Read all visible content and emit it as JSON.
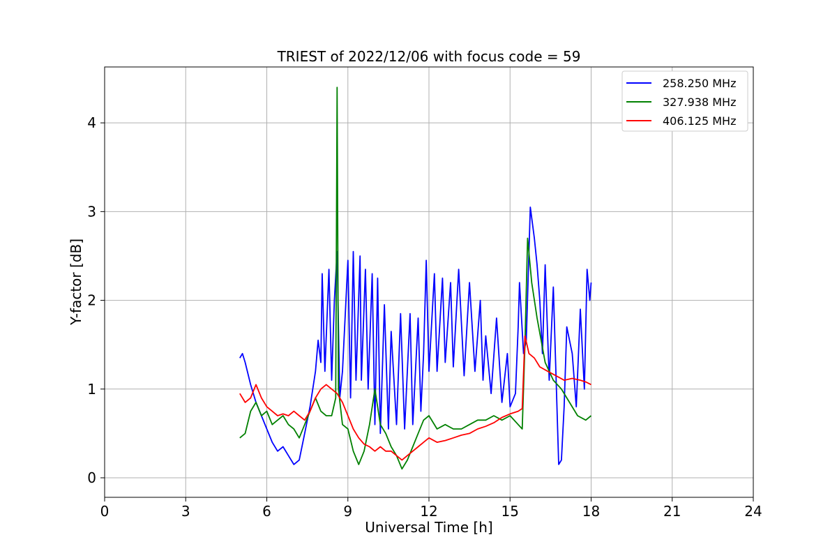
{
  "chart_data": {
    "type": "line",
    "title": "TRIEST of 2022/12/06 with focus code = 59",
    "xlabel": "Universal Time [h]",
    "ylabel": "Y-factor [dB]",
    "xlim": [
      0,
      24
    ],
    "ylim": [
      -0.22,
      4.63
    ],
    "xticks": [
      0,
      3,
      6,
      9,
      12,
      15,
      18,
      21,
      24
    ],
    "yticks": [
      0,
      1,
      2,
      3,
      4
    ],
    "grid": true,
    "legend_position": "top-right",
    "series": [
      {
        "name": "258.250 MHz",
        "color": "#0000ff",
        "points": [
          [
            5.0,
            1.35
          ],
          [
            5.1,
            1.4
          ],
          [
            5.2,
            1.3
          ],
          [
            5.4,
            1.05
          ],
          [
            5.6,
            0.85
          ],
          [
            5.8,
            0.7
          ],
          [
            6.0,
            0.55
          ],
          [
            6.2,
            0.4
          ],
          [
            6.4,
            0.3
          ],
          [
            6.6,
            0.35
          ],
          [
            6.8,
            0.25
          ],
          [
            7.0,
            0.15
          ],
          [
            7.2,
            0.2
          ],
          [
            7.4,
            0.5
          ],
          [
            7.6,
            0.8
          ],
          [
            7.8,
            1.2
          ],
          [
            7.9,
            1.55
          ],
          [
            8.0,
            1.3
          ],
          [
            8.05,
            2.3
          ],
          [
            8.15,
            1.2
          ],
          [
            8.3,
            2.35
          ],
          [
            8.4,
            1.1
          ],
          [
            8.5,
            2.0
          ],
          [
            8.6,
            2.55
          ],
          [
            8.7,
            0.9
          ],
          [
            8.8,
            1.2
          ],
          [
            9.0,
            2.45
          ],
          [
            9.1,
            0.9
          ],
          [
            9.2,
            2.55
          ],
          [
            9.3,
            1.1
          ],
          [
            9.45,
            2.5
          ],
          [
            9.5,
            1.1
          ],
          [
            9.65,
            2.35
          ],
          [
            9.75,
            1.0
          ],
          [
            9.9,
            2.3
          ],
          [
            10.0,
            0.6
          ],
          [
            10.1,
            2.25
          ],
          [
            10.2,
            0.5
          ],
          [
            10.35,
            1.95
          ],
          [
            10.5,
            0.55
          ],
          [
            10.6,
            1.65
          ],
          [
            10.8,
            0.6
          ],
          [
            10.95,
            1.85
          ],
          [
            11.1,
            0.55
          ],
          [
            11.3,
            1.85
          ],
          [
            11.4,
            0.6
          ],
          [
            11.6,
            1.8
          ],
          [
            11.7,
            0.75
          ],
          [
            11.8,
            1.4
          ],
          [
            11.9,
            2.45
          ],
          [
            12.0,
            1.2
          ],
          [
            12.2,
            2.3
          ],
          [
            12.3,
            1.2
          ],
          [
            12.5,
            2.25
          ],
          [
            12.6,
            1.3
          ],
          [
            12.8,
            2.2
          ],
          [
            12.9,
            1.25
          ],
          [
            13.1,
            2.35
          ],
          [
            13.3,
            1.15
          ],
          [
            13.5,
            2.2
          ],
          [
            13.7,
            1.2
          ],
          [
            13.9,
            2.0
          ],
          [
            14.0,
            1.1
          ],
          [
            14.1,
            1.6
          ],
          [
            14.3,
            0.95
          ],
          [
            14.5,
            1.8
          ],
          [
            14.7,
            0.85
          ],
          [
            14.9,
            1.4
          ],
          [
            15.0,
            0.8
          ],
          [
            15.2,
            0.95
          ],
          [
            15.3,
            1.7
          ],
          [
            15.35,
            2.2
          ],
          [
            15.5,
            1.4
          ],
          [
            15.6,
            1.55
          ],
          [
            15.75,
            3.05
          ],
          [
            15.9,
            2.7
          ],
          [
            16.0,
            2.4
          ],
          [
            16.1,
            2.0
          ],
          [
            16.2,
            1.4
          ],
          [
            16.3,
            2.4
          ],
          [
            16.45,
            1.1
          ],
          [
            16.6,
            2.15
          ],
          [
            16.8,
            0.15
          ],
          [
            16.9,
            0.2
          ],
          [
            17.0,
            0.8
          ],
          [
            17.1,
            1.7
          ],
          [
            17.3,
            1.4
          ],
          [
            17.45,
            0.8
          ],
          [
            17.6,
            1.9
          ],
          [
            17.75,
            1.0
          ],
          [
            17.85,
            2.35
          ],
          [
            17.95,
            2.0
          ],
          [
            18.0,
            2.2
          ]
        ]
      },
      {
        "name": "327.938 MHz",
        "color": "#008000",
        "points": [
          [
            5.0,
            0.45
          ],
          [
            5.2,
            0.5
          ],
          [
            5.4,
            0.75
          ],
          [
            5.6,
            0.85
          ],
          [
            5.8,
            0.7
          ],
          [
            6.0,
            0.75
          ],
          [
            6.2,
            0.6
          ],
          [
            6.4,
            0.65
          ],
          [
            6.6,
            0.7
          ],
          [
            6.8,
            0.6
          ],
          [
            7.0,
            0.55
          ],
          [
            7.2,
            0.45
          ],
          [
            7.4,
            0.6
          ],
          [
            7.6,
            0.75
          ],
          [
            7.8,
            0.9
          ],
          [
            8.0,
            0.75
          ],
          [
            8.2,
            0.7
          ],
          [
            8.4,
            0.7
          ],
          [
            8.55,
            0.9
          ],
          [
            8.6,
            4.4
          ],
          [
            8.65,
            1.0
          ],
          [
            8.8,
            0.6
          ],
          [
            9.0,
            0.55
          ],
          [
            9.2,
            0.3
          ],
          [
            9.4,
            0.15
          ],
          [
            9.6,
            0.3
          ],
          [
            9.8,
            0.6
          ],
          [
            10.0,
            1.0
          ],
          [
            10.2,
            0.6
          ],
          [
            10.4,
            0.5
          ],
          [
            10.6,
            0.35
          ],
          [
            10.8,
            0.25
          ],
          [
            11.0,
            0.1
          ],
          [
            11.2,
            0.2
          ],
          [
            11.4,
            0.35
          ],
          [
            11.6,
            0.5
          ],
          [
            11.8,
            0.65
          ],
          [
            12.0,
            0.7
          ],
          [
            12.3,
            0.55
          ],
          [
            12.6,
            0.6
          ],
          [
            12.9,
            0.55
          ],
          [
            13.2,
            0.55
          ],
          [
            13.5,
            0.6
          ],
          [
            13.8,
            0.65
          ],
          [
            14.1,
            0.65
          ],
          [
            14.4,
            0.7
          ],
          [
            14.7,
            0.65
          ],
          [
            15.0,
            0.7
          ],
          [
            15.3,
            0.6
          ],
          [
            15.45,
            0.55
          ],
          [
            15.55,
            1.5
          ],
          [
            15.65,
            2.7
          ],
          [
            15.8,
            2.2
          ],
          [
            16.0,
            1.8
          ],
          [
            16.3,
            1.3
          ],
          [
            16.6,
            1.1
          ],
          [
            16.9,
            1.0
          ],
          [
            17.2,
            0.85
          ],
          [
            17.5,
            0.7
          ],
          [
            17.8,
            0.65
          ],
          [
            18.0,
            0.7
          ]
        ]
      },
      {
        "name": "406.125 MHz",
        "color": "#ff0000",
        "points": [
          [
            5.0,
            0.95
          ],
          [
            5.2,
            0.85
          ],
          [
            5.4,
            0.9
          ],
          [
            5.6,
            1.05
          ],
          [
            5.8,
            0.9
          ],
          [
            6.0,
            0.8
          ],
          [
            6.2,
            0.75
          ],
          [
            6.4,
            0.7
          ],
          [
            6.6,
            0.72
          ],
          [
            6.8,
            0.7
          ],
          [
            7.0,
            0.75
          ],
          [
            7.2,
            0.7
          ],
          [
            7.4,
            0.65
          ],
          [
            7.6,
            0.75
          ],
          [
            7.8,
            0.9
          ],
          [
            8.0,
            1.0
          ],
          [
            8.2,
            1.05
          ],
          [
            8.4,
            1.0
          ],
          [
            8.6,
            0.95
          ],
          [
            8.8,
            0.85
          ],
          [
            9.0,
            0.7
          ],
          [
            9.2,
            0.55
          ],
          [
            9.4,
            0.45
          ],
          [
            9.6,
            0.38
          ],
          [
            9.8,
            0.35
          ],
          [
            10.0,
            0.3
          ],
          [
            10.2,
            0.35
          ],
          [
            10.4,
            0.3
          ],
          [
            10.6,
            0.3
          ],
          [
            10.8,
            0.25
          ],
          [
            11.0,
            0.2
          ],
          [
            11.2,
            0.25
          ],
          [
            11.4,
            0.3
          ],
          [
            11.6,
            0.35
          ],
          [
            11.8,
            0.4
          ],
          [
            12.0,
            0.45
          ],
          [
            12.3,
            0.4
          ],
          [
            12.6,
            0.42
          ],
          [
            12.9,
            0.45
          ],
          [
            13.2,
            0.48
          ],
          [
            13.5,
            0.5
          ],
          [
            13.8,
            0.55
          ],
          [
            14.1,
            0.58
          ],
          [
            14.4,
            0.62
          ],
          [
            14.7,
            0.68
          ],
          [
            15.0,
            0.72
          ],
          [
            15.3,
            0.75
          ],
          [
            15.45,
            0.78
          ],
          [
            15.55,
            1.6
          ],
          [
            15.7,
            1.4
          ],
          [
            15.9,
            1.35
          ],
          [
            16.1,
            1.25
          ],
          [
            16.4,
            1.2
          ],
          [
            16.7,
            1.15
          ],
          [
            17.0,
            1.1
          ],
          [
            17.3,
            1.12
          ],
          [
            17.6,
            1.1
          ],
          [
            17.8,
            1.08
          ],
          [
            18.0,
            1.05
          ]
        ]
      }
    ]
  }
}
